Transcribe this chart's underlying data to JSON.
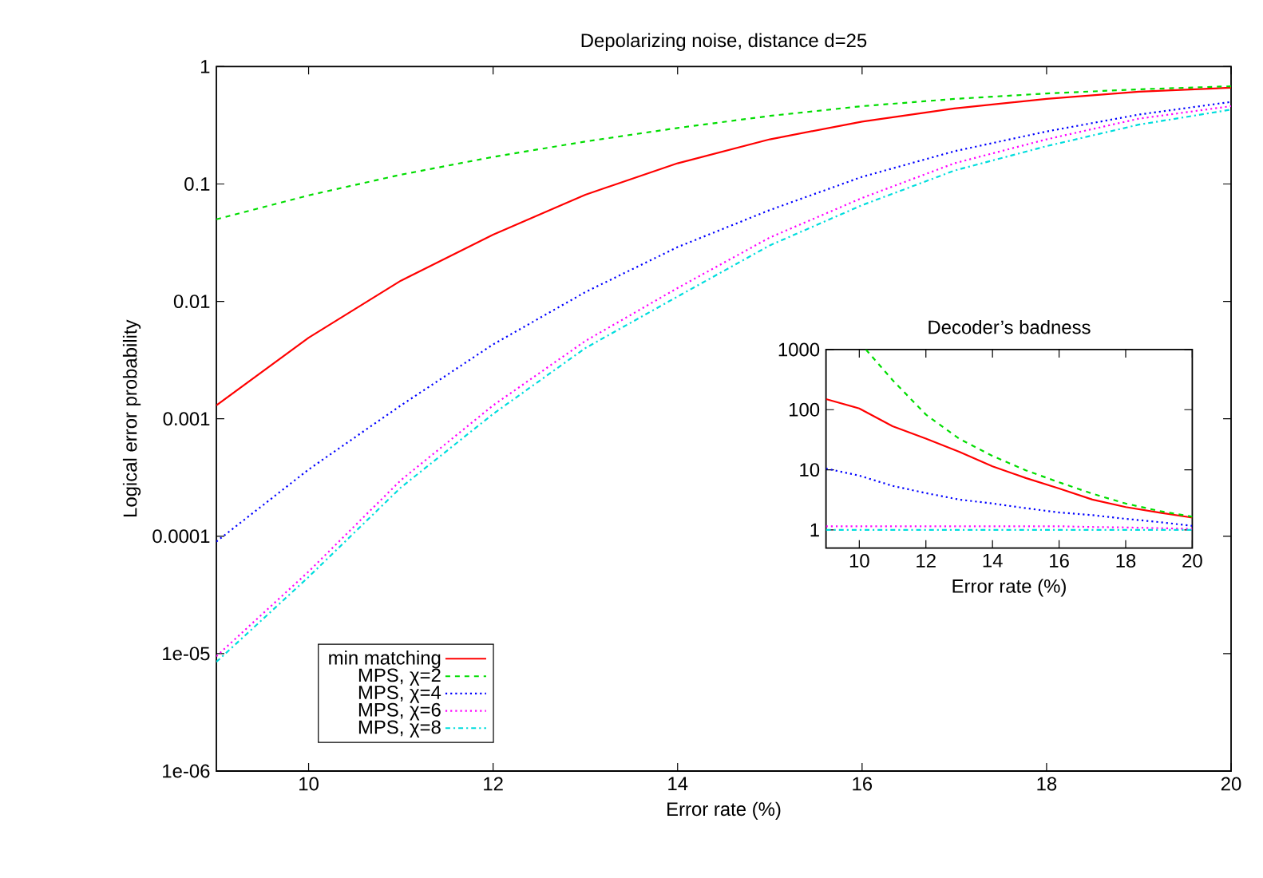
{
  "chart_data": [
    {
      "type": "line",
      "title": "Depolarizing noise, distance d=25",
      "xlabel": "Error rate (%)",
      "ylabel": "Logical error probability",
      "log": "y",
      "x": [
        9,
        10,
        11,
        12,
        13,
        14,
        15,
        16,
        17,
        18,
        19,
        20
      ],
      "xlim": [
        9,
        20
      ],
      "xticks": [
        10,
        12,
        14,
        16,
        18,
        20
      ],
      "ylim": [
        1e-06,
        1
      ],
      "yticks": [
        {
          "value": 1e-06,
          "label": "1e-06"
        },
        {
          "value": 1e-05,
          "label": "1e-05"
        },
        0.0001,
        0.001,
        0.01,
        0.1,
        1
      ],
      "legend": "bottom left",
      "grid": false,
      "marker": "none",
      "series": [
        {
          "name": "min matching",
          "color": "#ff0000",
          "line_style": "solid",
          "values": [
            0.0013,
            0.0049,
            0.015,
            0.037,
            0.081,
            0.15,
            0.24,
            0.34,
            0.44,
            0.53,
            0.61,
            0.66
          ]
        },
        {
          "name": "MPS, χ=2",
          "color": "#00dd00",
          "line_style": "dashed",
          "values": [
            0.05,
            0.08,
            0.12,
            0.17,
            0.23,
            0.3,
            0.38,
            0.46,
            0.53,
            0.59,
            0.64,
            0.68
          ]
        },
        {
          "name": "MPS, χ=4",
          "color": "#0000ff",
          "line_style": "dotted",
          "values": [
            9e-05,
            0.00037,
            0.0013,
            0.0043,
            0.012,
            0.029,
            0.06,
            0.115,
            0.19,
            0.28,
            0.39,
            0.5
          ]
        },
        {
          "name": "MPS, χ=6",
          "color": "#ff00ff",
          "line_style": "dotted",
          "values": [
            9.5e-06,
            5e-05,
            0.0003,
            0.0013,
            0.0046,
            0.013,
            0.035,
            0.076,
            0.15,
            0.24,
            0.36,
            0.46
          ]
        },
        {
          "name": "MPS, χ=8",
          "color": "#00dddd",
          "line_style": "dashdot",
          "values": [
            8.5e-06,
            4.5e-05,
            0.00026,
            0.0011,
            0.004,
            0.011,
            0.03,
            0.066,
            0.13,
            0.21,
            0.32,
            0.43
          ]
        }
      ]
    },
    {
      "type": "line",
      "title": "Decoder’s badness",
      "xlabel": "Error rate (%)",
      "log": "y",
      "x": [
        9,
        10,
        11,
        12,
        13,
        14,
        15,
        16,
        17,
        18,
        19,
        20
      ],
      "xlim": [
        9,
        20
      ],
      "xticks": [
        10,
        12,
        14,
        16,
        18,
        20
      ],
      "ylim": [
        0.5,
        1000
      ],
      "yticks": [
        1,
        10,
        100,
        1000
      ],
      "grid": false,
      "legend": false,
      "marker": "none",
      "series": [
        {
          "color": "#ff0000",
          "line_style": "solid",
          "values": [
            150,
            105,
            53,
            33,
            20,
            11.4,
            7.3,
            4.9,
            3.2,
            2.4,
            1.95,
            1.6
          ]
        },
        {
          "color": "#00dd00",
          "line_style": "dashed",
          "x": [
            10.2,
            11,
            12,
            13,
            14,
            15,
            16,
            17,
            18,
            19,
            20
          ],
          "values": [
            1000,
            310,
            83,
            33,
            17,
            9.8,
            6.2,
            4.0,
            2.75,
            2.07,
            1.66
          ]
        },
        {
          "color": "#0000ff",
          "line_style": "dotted",
          "values": [
            10.5,
            8,
            5.4,
            4.1,
            3.2,
            2.75,
            2.3,
            1.95,
            1.76,
            1.53,
            1.35,
            1.17
          ]
        },
        {
          "color": "#ff00ff",
          "line_style": "dotted",
          "values": [
            1.15,
            1.15,
            1.15,
            1.15,
            1.15,
            1.15,
            1.15,
            1.15,
            1.12,
            1.1,
            1.07,
            1.04
          ]
        },
        {
          "color": "#00dddd",
          "line_style": "dashdot",
          "values": [
            1.0,
            1.0,
            1.0,
            1.0,
            1.0,
            1.0,
            1.0,
            1.0,
            1.0,
            1.0,
            1.0,
            1.0
          ]
        }
      ]
    }
  ]
}
